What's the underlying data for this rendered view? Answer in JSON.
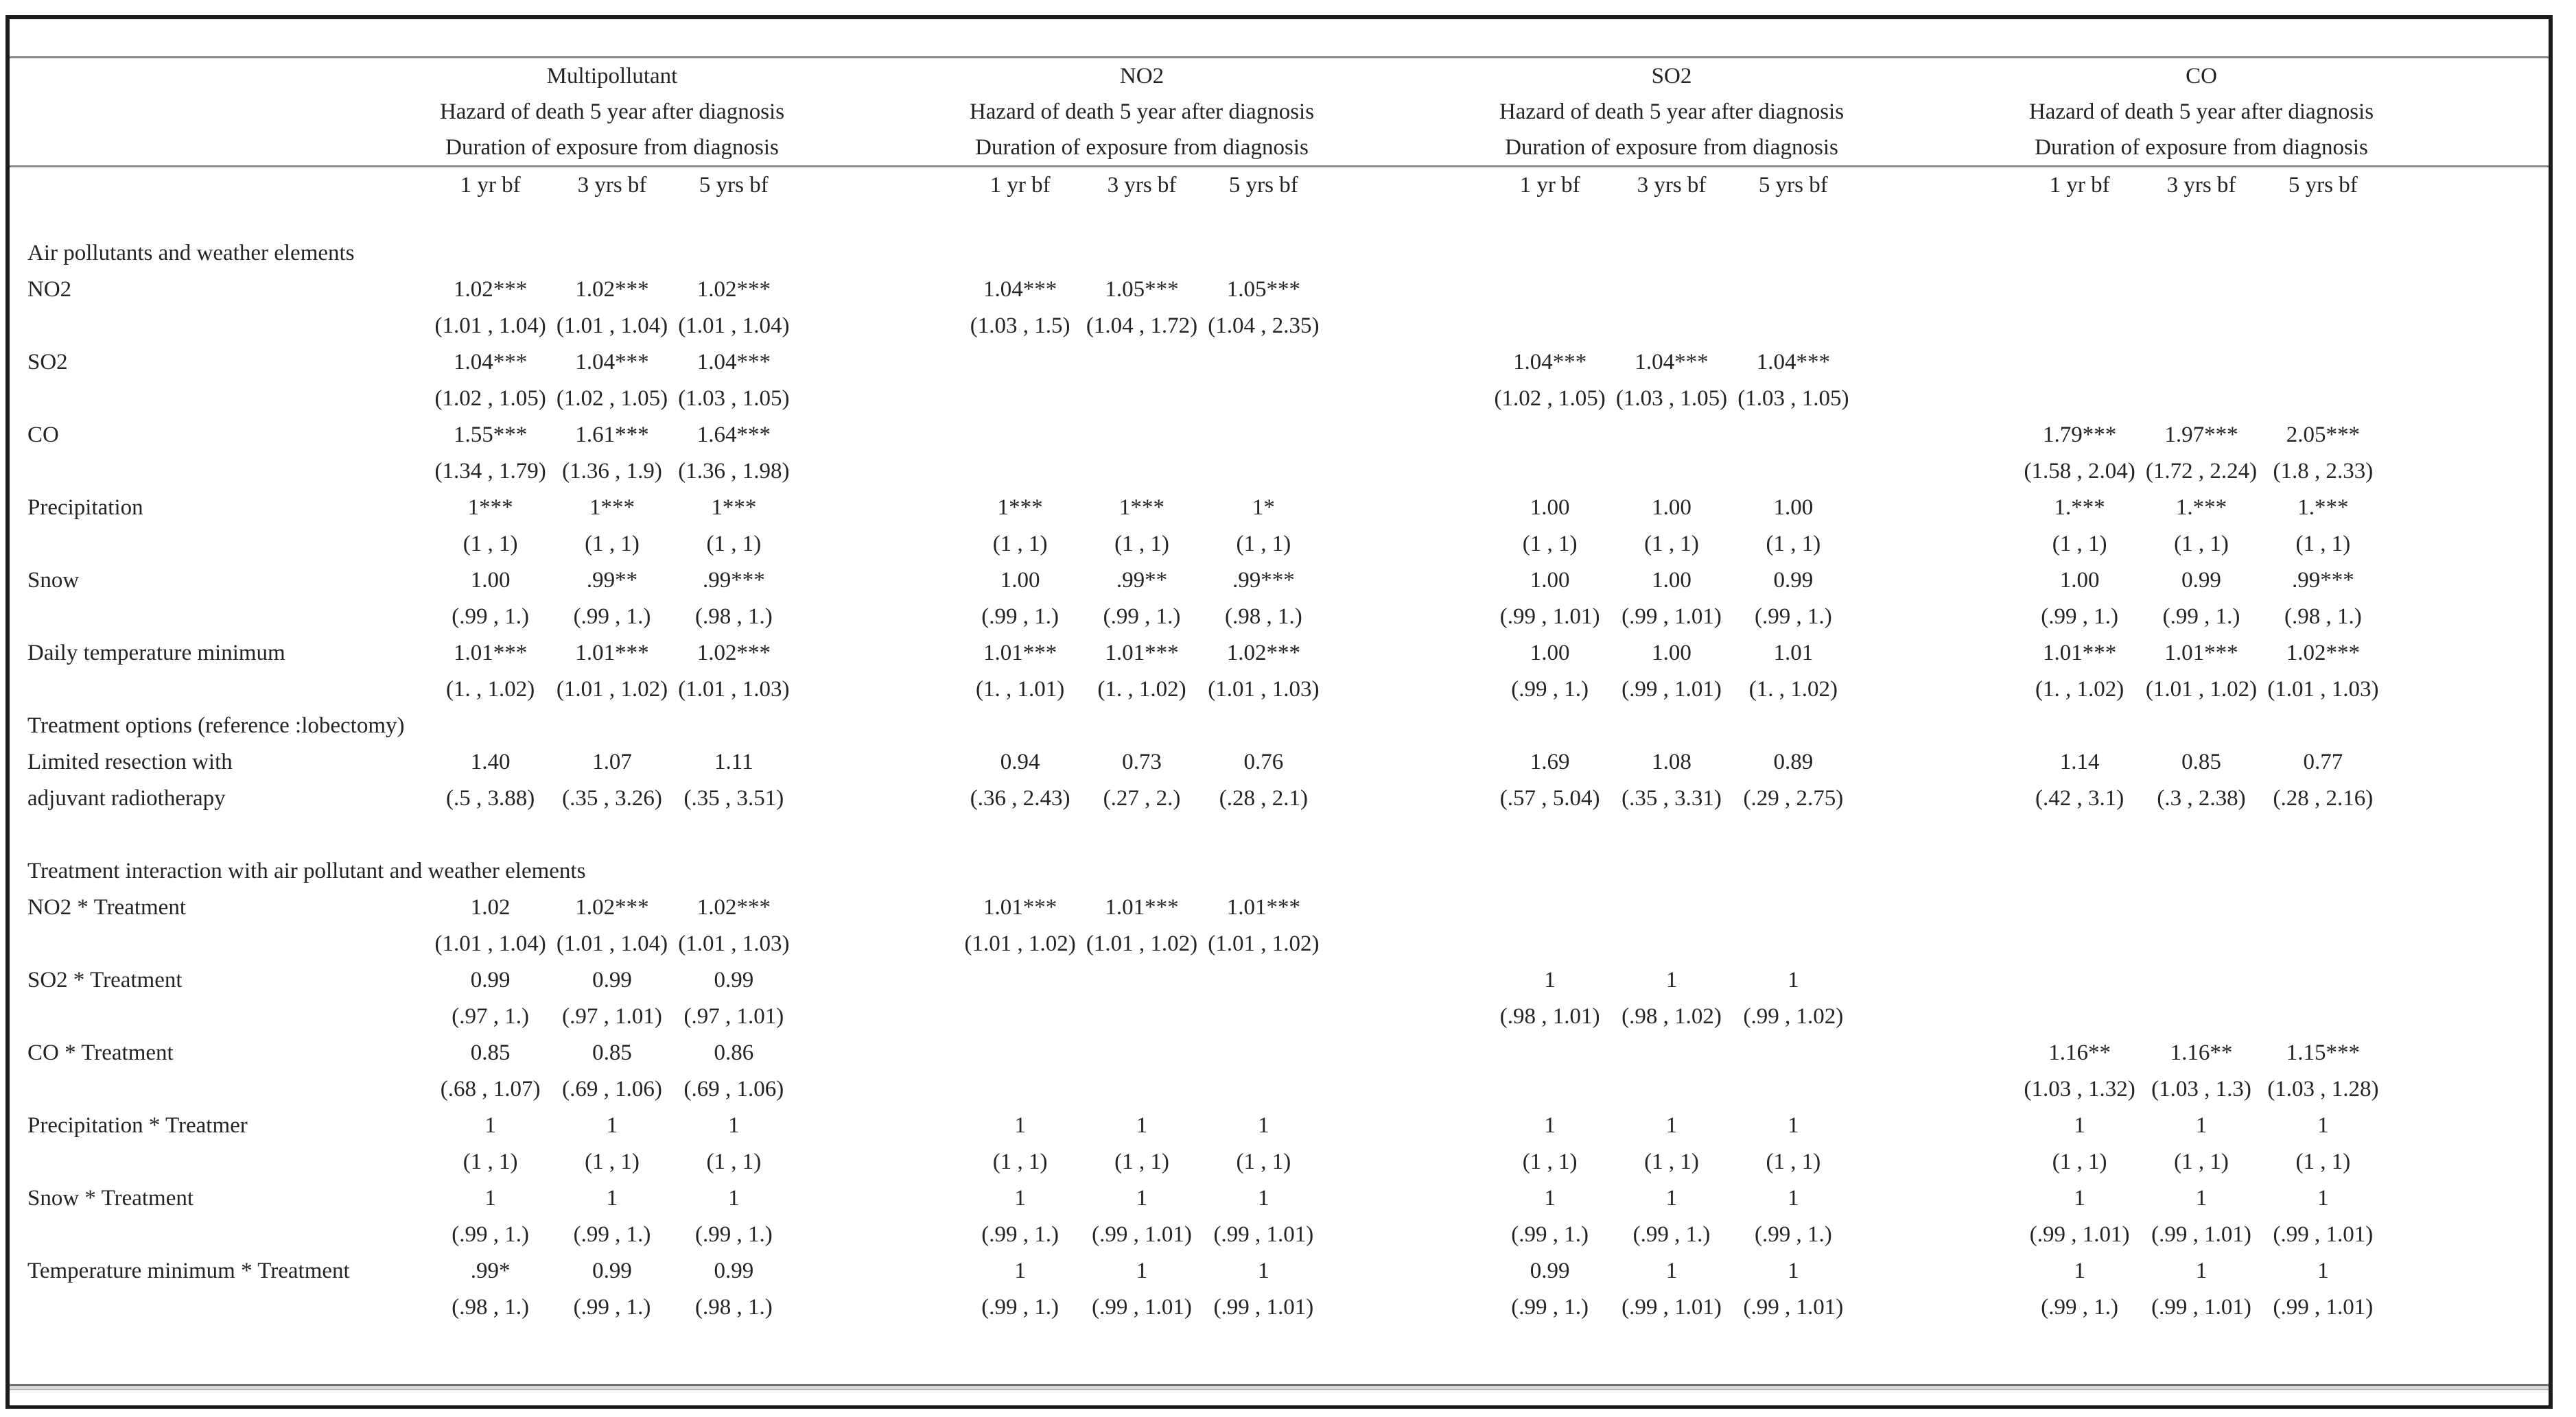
{
  "colors": {
    "text": "#242424",
    "outer_border": "#1c1c1c",
    "rule_gray": "#8a8a8a"
  },
  "header": {
    "groups": [
      {
        "name": "Multipollutant",
        "subtitle1": "Hazard of death 5 year after diagnosis",
        "subtitle2": "Duration of exposure from diagnosis",
        "cols": [
          "1 yr bf",
          "3 yrs bf",
          "5 yrs bf"
        ]
      },
      {
        "name": "NO2",
        "subtitle1": "Hazard of death 5 year after diagnosis",
        "subtitle2": "Duration of exposure from diagnosis",
        "cols": [
          "1 yr bf",
          "3 yrs bf",
          "5 yrs bf"
        ]
      },
      {
        "name": "SO2",
        "subtitle1": "Hazard of death 5 year after diagnosis",
        "subtitle2": "Duration of exposure from diagnosis",
        "cols": [
          "1 yr bf",
          "3 yrs bf",
          "5 yrs bf"
        ]
      },
      {
        "name": "CO",
        "subtitle1": "Hazard of death 5 year after diagnosis",
        "subtitle2": "Duration of exposure from diagnosis",
        "cols": [
          "1 yr bf",
          "3 yrs bf",
          "5 yrs bf"
        ]
      }
    ]
  },
  "rows": [
    {
      "kind": "section",
      "label": "Air pollutants and weather elements",
      "label2": "",
      "est": [
        "",
        "",
        "",
        "",
        "",
        "",
        "",
        "",
        "",
        "",
        "",
        ""
      ],
      "ci": [
        "",
        "",
        "",
        "",
        "",
        "",
        "",
        "",
        "",
        "",
        "",
        ""
      ]
    },
    {
      "kind": "data",
      "label": "NO2",
      "label2": "",
      "est": [
        "1.02***",
        "1.02***",
        "1.02***",
        "1.04***",
        "1.05***",
        "1.05***",
        "",
        "",
        "",
        "",
        "",
        ""
      ],
      "ci": [
        "(1.01 , 1.04)",
        "(1.01 , 1.04)",
        "(1.01 , 1.04)",
        "(1.03 , 1.5)",
        "(1.04 , 1.72)",
        "(1.04 , 2.35)",
        "",
        "",
        "",
        "",
        "",
        ""
      ]
    },
    {
      "kind": "data",
      "label": "SO2",
      "label2": "",
      "est": [
        "1.04***",
        "1.04***",
        "1.04***",
        "",
        "",
        "",
        "1.04***",
        "1.04***",
        "1.04***",
        "",
        "",
        ""
      ],
      "ci": [
        "(1.02 , 1.05)",
        "(1.02 , 1.05)",
        "(1.03 , 1.05)",
        "",
        "",
        "",
        "(1.02 , 1.05)",
        "(1.03 , 1.05)",
        "(1.03 , 1.05)",
        "",
        "",
        ""
      ]
    },
    {
      "kind": "data",
      "label": "CO",
      "label2": "",
      "est": [
        "1.55***",
        "1.61***",
        "1.64***",
        "",
        "",
        "",
        "",
        "",
        "",
        "1.79***",
        "1.97***",
        "2.05***"
      ],
      "ci": [
        "(1.34 , 1.79)",
        "(1.36 , 1.9)",
        "(1.36 , 1.98)",
        "",
        "",
        "",
        "",
        "",
        "",
        "(1.58 , 2.04)",
        "(1.72 , 2.24)",
        "(1.8 , 2.33)"
      ]
    },
    {
      "kind": "data",
      "label": "Precipitation",
      "label2": "",
      "est": [
        "1***",
        "1***",
        "1***",
        "1***",
        "1***",
        "1*",
        "1.00",
        "1.00",
        "1.00",
        "1.***",
        "1.***",
        "1.***"
      ],
      "ci": [
        "(1 , 1)",
        "(1 , 1)",
        "(1 , 1)",
        "(1 , 1)",
        "(1 , 1)",
        "(1 , 1)",
        "(1 , 1)",
        "(1 , 1)",
        "(1 , 1)",
        "(1 , 1)",
        "(1 , 1)",
        "(1 , 1)"
      ]
    },
    {
      "kind": "data",
      "label": "Snow",
      "label2": "",
      "est": [
        "1.00",
        ".99**",
        ".99***",
        "1.00",
        ".99**",
        ".99***",
        "1.00",
        "1.00",
        "0.99",
        "1.00",
        "0.99",
        ".99***"
      ],
      "ci": [
        "(.99 , 1.)",
        "(.99 , 1.)",
        "(.98 , 1.)",
        "(.99 , 1.)",
        "(.99 , 1.)",
        "(.98 , 1.)",
        "(.99 , 1.01)",
        "(.99 , 1.01)",
        "(.99 , 1.)",
        "(.99 , 1.)",
        "(.99 , 1.)",
        "(.98 , 1.)"
      ]
    },
    {
      "kind": "data",
      "label": "Daily temperature minimum",
      "label2": "",
      "est": [
        "1.01***",
        "1.01***",
        "1.02***",
        "1.01***",
        "1.01***",
        "1.02***",
        "1.00",
        "1.00",
        "1.01",
        "1.01***",
        "1.01***",
        "1.02***"
      ],
      "ci": [
        "(1. , 1.02)",
        "(1.01 , 1.02)",
        "(1.01 , 1.03)",
        "(1. , 1.01)",
        "(1. , 1.02)",
        "(1.01 , 1.03)",
        "(.99 , 1.)",
        "(.99 , 1.01)",
        "(1. , 1.02)",
        "(1. , 1.02)",
        "(1.01 , 1.02)",
        "(1.01 , 1.03)"
      ]
    },
    {
      "kind": "section",
      "label": "Treatment options (reference :lobectomy)",
      "label2": "",
      "est": [
        "",
        "",
        "",
        "",
        "",
        "",
        "",
        "",
        "",
        "",
        "",
        ""
      ],
      "ci": [
        "",
        "",
        "",
        "",
        "",
        "",
        "",
        "",
        "",
        "",
        "",
        ""
      ]
    },
    {
      "kind": "data",
      "label": "Limited resection with",
      "label2": "adjuvant radiotherapy",
      "est": [
        "1.40",
        "1.07",
        "1.11",
        "0.94",
        "0.73",
        "0.76",
        "1.69",
        "1.08",
        "0.89",
        "1.14",
        "0.85",
        "0.77"
      ],
      "ci": [
        "(.5 , 3.88)",
        "(.35 , 3.26)",
        "(.35 , 3.51)",
        "(.36 , 2.43)",
        "(.27 , 2.)",
        "(.28 , 2.1)",
        "(.57 , 5.04)",
        "(.35 , 3.31)",
        "(.29 , 2.75)",
        "(.42 , 3.1)",
        "(.3 , 2.38)",
        "(.28 , 2.16)"
      ]
    },
    {
      "kind": "spacer",
      "label": "",
      "label2": "",
      "est": [
        "",
        "",
        "",
        "",
        "",
        "",
        "",
        "",
        "",
        "",
        "",
        ""
      ],
      "ci": [
        "",
        "",
        "",
        "",
        "",
        "",
        "",
        "",
        "",
        "",
        "",
        ""
      ]
    },
    {
      "kind": "section",
      "label": "Treatment interaction with air pollutant and weather elements",
      "label2": "",
      "est": [
        "",
        "",
        "",
        "",
        "",
        "",
        "",
        "",
        "",
        "",
        "",
        ""
      ],
      "ci": [
        "",
        "",
        "",
        "",
        "",
        "",
        "",
        "",
        "",
        "",
        "",
        ""
      ]
    },
    {
      "kind": "data",
      "label": "NO2 * Treatment",
      "label2": "",
      "est": [
        "1.02",
        "1.02***",
        "1.02***",
        "1.01***",
        "1.01***",
        "1.01***",
        "",
        "",
        "",
        "",
        "",
        ""
      ],
      "ci": [
        "(1.01 , 1.04)",
        "(1.01 , 1.04)",
        "(1.01 , 1.03)",
        "(1.01 , 1.02)",
        "(1.01 , 1.02)",
        "(1.01 , 1.02)",
        "",
        "",
        "",
        "",
        "",
        ""
      ]
    },
    {
      "kind": "data",
      "label": "SO2 * Treatment",
      "label2": "",
      "est": [
        "0.99",
        "0.99",
        "0.99",
        "",
        "",
        "",
        "1",
        "1",
        "1",
        "",
        "",
        ""
      ],
      "ci": [
        "(.97 , 1.)",
        "(.97 , 1.01)",
        "(.97 , 1.01)",
        "",
        "",
        "",
        "(.98 , 1.01)",
        "(.98 , 1.02)",
        "(.99 , 1.02)",
        "",
        "",
        ""
      ]
    },
    {
      "kind": "data",
      "label": "CO * Treatment",
      "label2": "",
      "est": [
        "0.85",
        "0.85",
        "0.86",
        "",
        "",
        "",
        "",
        "",
        "",
        "1.16**",
        "1.16**",
        "1.15***"
      ],
      "ci": [
        "(.68 , 1.07)",
        "(.69 , 1.06)",
        "(.69 , 1.06)",
        "",
        "",
        "",
        "",
        "",
        "",
        "(1.03 , 1.32)",
        "(1.03 , 1.3)",
        "(1.03 , 1.28)"
      ]
    },
    {
      "kind": "data",
      "label": "Precipitation * Treatmer",
      "label2": "",
      "est": [
        "1",
        "1",
        "1",
        "1",
        "1",
        "1",
        "1",
        "1",
        "1",
        "1",
        "1",
        "1"
      ],
      "ci": [
        "(1 , 1)",
        "(1 , 1)",
        "(1 , 1)",
        "(1 , 1)",
        "(1 , 1)",
        "(1 , 1)",
        "(1 , 1)",
        "(1 , 1)",
        "(1 , 1)",
        "(1 , 1)",
        "(1 , 1)",
        "(1 , 1)"
      ]
    },
    {
      "kind": "data",
      "label": "Snow * Treatment",
      "label2": "",
      "est": [
        "1",
        "1",
        "1",
        "1",
        "1",
        "1",
        "1",
        "1",
        "1",
        "1",
        "1",
        "1"
      ],
      "ci": [
        "(.99 , 1.)",
        "(.99 , 1.)",
        "(.99 , 1.)",
        "(.99 , 1.)",
        "(.99 , 1.01)",
        "(.99 , 1.01)",
        "(.99 , 1.)",
        "(.99 , 1.)",
        "(.99 , 1.)",
        "(.99 , 1.01)",
        "(.99 , 1.01)",
        "(.99 , 1.01)"
      ]
    },
    {
      "kind": "data",
      "label": "Temperature minimum * Treatment",
      "label2": "",
      "est": [
        ".99*",
        "0.99",
        "0.99",
        "1",
        "1",
        "1",
        "0.99",
        "1",
        "1",
        "1",
        "1",
        "1"
      ],
      "ci": [
        "(.98 , 1.)",
        "(.99 , 1.)",
        "(.98 , 1.)",
        "(.99 , 1.)",
        "(.99 , 1.01)",
        "(.99 , 1.01)",
        "(.99 , 1.)",
        "(.99 , 1.01)",
        "(.99 , 1.01)",
        "(.99 , 1.)",
        "(.99 , 1.01)",
        "(.99 , 1.01)"
      ]
    }
  ]
}
